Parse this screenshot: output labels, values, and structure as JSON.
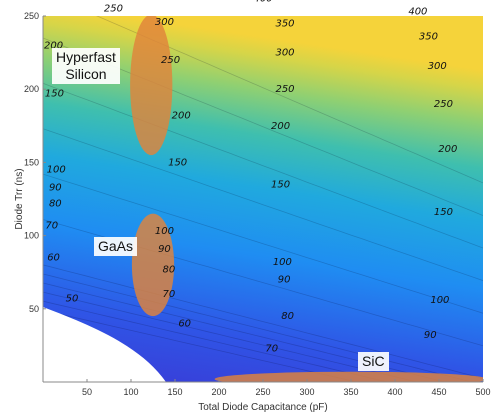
{
  "chart_data": {
    "type": "heatmap",
    "subtype": "filled-contour",
    "title": "",
    "xlabel": "Total Diode Capacitance (pF)",
    "ylabel": "Diode Trr (ns)",
    "xlim": [
      0,
      500
    ],
    "ylim": [
      0,
      250
    ],
    "xticks": [
      "50",
      "100",
      "150",
      "200",
      "250",
      "300",
      "350",
      "400",
      "450",
      "500"
    ],
    "yticks": [
      "50",
      "100",
      "150",
      "200",
      "250"
    ],
    "contour_levels": [
      50,
      60,
      70,
      80,
      90,
      100,
      150,
      200,
      250,
      300,
      350,
      400
    ],
    "colors": {
      "low": "#3a3ad6",
      "mid": "#1f8df2",
      "mid_high": "#3fbfae",
      "high": "#8fd072",
      "top": "#f5d33a",
      "region_fill": "#e0843a",
      "blank": "#ffffff"
    },
    "contour_labels": [
      {
        "text": "50",
        "x": 33,
        "y": 57
      },
      {
        "text": "60",
        "x": 12,
        "y": 85
      },
      {
        "text": "70",
        "x": 10,
        "y": 107
      },
      {
        "text": "80",
        "x": 14,
        "y": 122
      },
      {
        "text": "90",
        "x": 14,
        "y": 133
      },
      {
        "text": "100",
        "x": 15,
        "y": 145
      },
      {
        "text": "150",
        "x": 13,
        "y": 197
      },
      {
        "text": "200",
        "x": 12,
        "y": 230
      },
      {
        "text": "250",
        "x": 80,
        "y": 255
      },
      {
        "text": "300",
        "x": 118,
        "y": 263
      },
      {
        "text": "350",
        "x": 136,
        "y": 273
      },
      {
        "text": "400",
        "x": 140,
        "y": 282
      },
      {
        "text": "400",
        "x": 250,
        "y": 262
      },
      {
        "text": "400",
        "x": 426,
        "y": 253
      },
      {
        "text": "350",
        "x": 275,
        "y": 245
      },
      {
        "text": "350",
        "x": 438,
        "y": 236
      },
      {
        "text": "300",
        "x": 138,
        "y": 246
      },
      {
        "text": "300",
        "x": 275,
        "y": 225
      },
      {
        "text": "300",
        "x": 448,
        "y": 216
      },
      {
        "text": "250",
        "x": 145,
        "y": 220
      },
      {
        "text": "250",
        "x": 275,
        "y": 200
      },
      {
        "text": "250",
        "x": 455,
        "y": 190
      },
      {
        "text": "200",
        "x": 157,
        "y": 182
      },
      {
        "text": "200",
        "x": 270,
        "y": 175
      },
      {
        "text": "200",
        "x": 460,
        "y": 159
      },
      {
        "text": "150",
        "x": 153,
        "y": 150
      },
      {
        "text": "150",
        "x": 270,
        "y": 135
      },
      {
        "text": "150",
        "x": 455,
        "y": 116
      },
      {
        "text": "100",
        "x": 138,
        "y": 103
      },
      {
        "text": "100",
        "x": 272,
        "y": 82
      },
      {
        "text": "100",
        "x": 451,
        "y": 56
      },
      {
        "text": "90",
        "x": 138,
        "y": 91
      },
      {
        "text": "90",
        "x": 274,
        "y": 70
      },
      {
        "text": "90",
        "x": 440,
        "y": 32
      },
      {
        "text": "80",
        "x": 143,
        "y": 77
      },
      {
        "text": "80",
        "x": 278,
        "y": 45
      },
      {
        "text": "70",
        "x": 143,
        "y": 60
      },
      {
        "text": "70",
        "x": 260,
        "y": 23
      },
      {
        "text": "60",
        "x": 161,
        "y": 40
      }
    ],
    "regions": [
      {
        "label": "Hyperfast Silicon",
        "cx": 123,
        "cy": 203,
        "rx": 24,
        "ry": 48
      },
      {
        "label": "GaAs",
        "cx": 125,
        "cy": 80,
        "rx": 24,
        "ry": 35
      },
      {
        "label": "SiC",
        "cx": 350,
        "cy": 2,
        "rx": 155,
        "ry": 5
      }
    ]
  }
}
